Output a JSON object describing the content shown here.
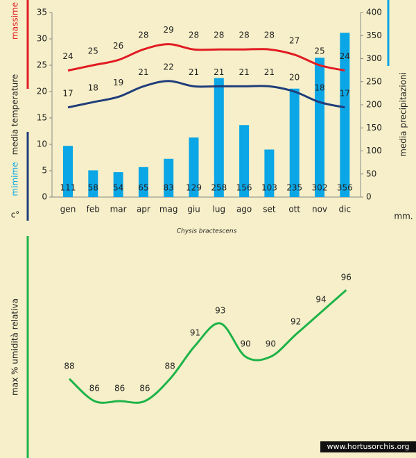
{
  "watermark": "www.hortusorchis.org",
  "chart_data": [
    {
      "type": "bar",
      "title": "Chysis bractescens",
      "y_label": "media  temperature",
      "y_unit": "c°",
      "y2_label": "media  precipitazioni",
      "y2_unit": "mm.",
      "categories": [
        "gen",
        "feb",
        "mar",
        "apr",
        "mag",
        "giu",
        "lug",
        "ago",
        "set",
        "ott",
        "nov",
        "dic"
      ],
      "ylim": [
        0,
        35
      ],
      "yticks": [
        0,
        5,
        10,
        15,
        20,
        25,
        30,
        35
      ],
      "y2lim": [
        0,
        400
      ],
      "y2ticks": [
        0,
        50,
        100,
        150,
        200,
        250,
        300,
        350,
        400
      ],
      "series": [
        {
          "name": "media precipitazioni",
          "type": "bar",
          "axis": "y2",
          "color": "#0aa6e6",
          "values": [
            111,
            58,
            54,
            65,
            83,
            129,
            258,
            156,
            103,
            235,
            302,
            356
          ]
        },
        {
          "name": "massime",
          "type": "line",
          "color": "#e11b22",
          "values": [
            24,
            25,
            26,
            28,
            29,
            28,
            28,
            28,
            28,
            27,
            25,
            24
          ]
        },
        {
          "name": "mimime",
          "type": "line",
          "color": "#1f3d7a",
          "values": [
            17,
            18,
            19,
            21,
            22,
            21,
            21,
            21,
            21,
            20,
            18,
            17
          ]
        }
      ]
    },
    {
      "type": "line",
      "y_label": "max % umidità relativa",
      "color": "#1db348",
      "values": [
        88,
        86,
        86,
        86,
        88,
        91,
        93,
        90,
        90,
        92,
        94,
        96
      ]
    }
  ]
}
